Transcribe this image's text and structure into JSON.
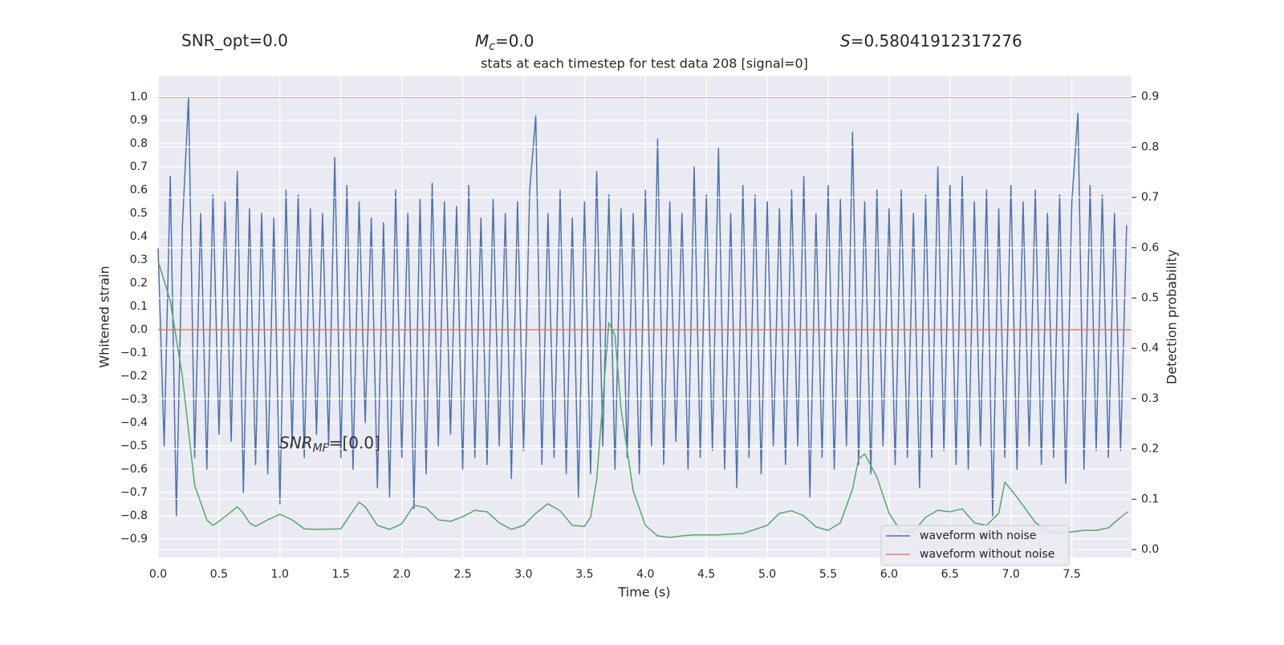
{
  "chart_data": {
    "type": "line",
    "title": "stats at each timestep for test data 208 [signal=0]",
    "xlabel": "Time (s)",
    "ylabel": "Whitened strain",
    "y2label": "Detection probability",
    "annotations": [
      {
        "text": "SNR_opt=0.0"
      },
      {
        "symbol": "M",
        "subscript": "c",
        "text": "=0.0"
      },
      {
        "symbol": "S",
        "text": "=0.58041912317276"
      },
      {
        "symbol": "SNR",
        "subscript": "MF",
        "text": "=[0.0]"
      }
    ],
    "xlim": [
      0,
      7.99
    ],
    "ylim": [
      -0.98,
      1.09
    ],
    "y2lim": [
      -0.016,
      0.941
    ],
    "xticks": [
      {
        "value": 0,
        "label": "0.0"
      },
      0.5,
      {
        "value": 1,
        "label": "1.0"
      },
      1.5,
      {
        "value": 2,
        "label": "2.0"
      },
      2.5,
      {
        "value": 3,
        "label": "3.0"
      },
      3.5,
      {
        "value": 4,
        "label": "4.0"
      },
      4.5,
      {
        "value": 5,
        "label": "5.0"
      },
      5.5,
      {
        "value": 6,
        "label": "6.0"
      },
      6.5,
      {
        "value": 7,
        "label": "7.0"
      },
      7.5
    ],
    "yticks": [
      {
        "value": -0.9,
        "label": "−0.9"
      },
      {
        "value": -0.8,
        "label": "−0.8"
      },
      {
        "value": -0.7,
        "label": "−0.7"
      },
      {
        "value": -0.6,
        "label": "−0.6"
      },
      {
        "value": -0.5,
        "label": "−0.5"
      },
      {
        "value": -0.4,
        "label": "−0.4"
      },
      {
        "value": -0.3,
        "label": "−0.3"
      },
      {
        "value": -0.2,
        "label": "−0.2"
      },
      {
        "value": -0.1,
        "label": "−0.1"
      },
      {
        "value": 0,
        "label": "0.0"
      },
      0.1,
      0.2,
      0.3,
      0.4,
      0.5,
      0.6,
      0.7,
      0.8,
      0.9,
      {
        "value": 1,
        "label": "1.0"
      }
    ],
    "y2ticks": [
      {
        "value": 0,
        "label": "0.0"
      },
      0.1,
      0.2,
      0.3,
      0.4,
      0.5,
      0.6,
      0.7,
      0.8,
      0.9
    ],
    "grid": true,
    "legend": "lower right",
    "hlines": [
      {
        "value": 1.0,
        "color": "#c44e52"
      }
    ],
    "series": [
      {
        "name": "waveform with noise",
        "color": "#4c72b0",
        "x": [
          0,
          0.05,
          0.1,
          0.15,
          0.2,
          0.25,
          0.3,
          0.35,
          0.4,
          0.45,
          0.5,
          0.55,
          0.6,
          0.65,
          0.7,
          0.75,
          0.8,
          0.85,
          0.9,
          0.95,
          1,
          1.05,
          1.1,
          1.15,
          1.2,
          1.25,
          1.3,
          1.35,
          1.4,
          1.45,
          1.5,
          1.55,
          1.6,
          1.65,
          1.7,
          1.75,
          1.8,
          1.85,
          1.9,
          1.95,
          2,
          2.05,
          2.1,
          2.15,
          2.2,
          2.25,
          2.3,
          2.35,
          2.4,
          2.45,
          2.5,
          2.55,
          2.6,
          2.65,
          2.7,
          2.75,
          2.8,
          2.85,
          2.9,
          2.95,
          3,
          3.05,
          3.1,
          3.15,
          3.2,
          3.25,
          3.3,
          3.35,
          3.4,
          3.45,
          3.5,
          3.55,
          3.6,
          3.65,
          3.7,
          3.75,
          3.8,
          3.85,
          3.9,
          3.95,
          4,
          4.05,
          4.1,
          4.15,
          4.2,
          4.25,
          4.3,
          4.35,
          4.4,
          4.45,
          4.5,
          4.55,
          4.6,
          4.65,
          4.7,
          4.75,
          4.8,
          4.85,
          4.9,
          4.95,
          5,
          5.05,
          5.1,
          5.15,
          5.2,
          5.25,
          5.3,
          5.35,
          5.4,
          5.45,
          5.5,
          5.55,
          5.6,
          5.65,
          5.7,
          5.75,
          5.8,
          5.85,
          5.9,
          5.95,
          6,
          6.05,
          6.1,
          6.15,
          6.2,
          6.25,
          6.3,
          6.35,
          6.4,
          6.45,
          6.5,
          6.55,
          6.6,
          6.65,
          6.7,
          6.75,
          6.8,
          6.85,
          6.9,
          6.95,
          7,
          7.05,
          7.1,
          7.15,
          7.2,
          7.25,
          7.3,
          7.35,
          7.4,
          7.45,
          7.5,
          7.55,
          7.6,
          7.65,
          7.7,
          7.75,
          7.8,
          7.85,
          7.9,
          7.95
        ],
        "values": [
          0.35,
          -0.5,
          0.66,
          -0.8,
          0.45,
          1.0,
          -0.55,
          0.5,
          -0.6,
          0.58,
          -0.45,
          0.55,
          -0.48,
          0.68,
          -0.7,
          0.52,
          -0.58,
          0.5,
          -0.62,
          0.48,
          -0.75,
          0.6,
          -0.5,
          0.58,
          -0.55,
          0.52,
          -0.45,
          0.5,
          -0.5,
          0.74,
          -0.55,
          0.62,
          -0.6,
          0.55,
          -0.4,
          0.48,
          -0.68,
          0.46,
          -0.72,
          0.6,
          -0.55,
          0.5,
          -0.77,
          0.56,
          -0.62,
          0.63,
          -0.5,
          0.55,
          -0.45,
          0.53,
          -0.6,
          0.62,
          -0.55,
          0.48,
          -0.58,
          0.56,
          -0.5,
          0.5,
          -0.64,
          0.55,
          -0.52,
          0.6,
          0.92,
          -0.58,
          0.5,
          -0.55,
          0.6,
          -0.62,
          0.48,
          -0.72,
          0.55,
          -0.62,
          0.68,
          -0.5,
          0.58,
          -0.6,
          0.52,
          -0.55,
          0.5,
          -0.62,
          0.6,
          -0.5,
          0.82,
          -0.58,
          0.55,
          -0.48,
          0.5,
          -0.6,
          0.7,
          -0.55,
          0.58,
          -0.52,
          0.78,
          -0.6,
          0.5,
          -0.68,
          0.62,
          -0.55,
          0.58,
          -0.62,
          0.55,
          -0.5,
          0.52,
          -0.58,
          0.6,
          -0.5,
          0.66,
          -0.72,
          0.5,
          -0.55,
          0.62,
          -0.6,
          0.56,
          -0.5,
          0.85,
          -0.58,
          0.55,
          -0.62,
          0.6,
          -0.5,
          0.52,
          -0.58,
          0.6,
          -0.55,
          0.5,
          -0.68,
          0.58,
          -0.55,
          0.7,
          -0.52,
          0.62,
          -0.58,
          0.66,
          -0.6,
          0.55,
          -0.5,
          0.6,
          -0.8,
          0.52,
          -0.55,
          0.62,
          -0.6,
          0.55,
          -0.5,
          0.6,
          -0.58,
          0.5,
          -0.55,
          0.58,
          -0.66,
          0.55,
          0.93,
          -0.6,
          0.62,
          -0.52,
          0.58,
          -0.55,
          0.5,
          -0.52,
          0.45
        ]
      },
      {
        "name": "waveform without noise",
        "color": "#dd8452",
        "x": [
          0,
          7.99
        ],
        "values": [
          0,
          0
        ]
      },
      {
        "color": "#55a868",
        "axis": "y2",
        "x": [
          0,
          0.1,
          0.2,
          0.3,
          0.4,
          0.45,
          0.5,
          0.6,
          0.65,
          0.7,
          0.75,
          0.8,
          0.9,
          1,
          1.1,
          1.2,
          1.3,
          1.5,
          1.6,
          1.65,
          1.7,
          1.8,
          1.9,
          2,
          2.1,
          2.2,
          2.3,
          2.4,
          2.5,
          2.6,
          2.7,
          2.8,
          2.9,
          3,
          3.1,
          3.2,
          3.3,
          3.4,
          3.5,
          3.55,
          3.6,
          3.65,
          3.7,
          3.75,
          3.8,
          3.9,
          4,
          4.1,
          4.2,
          4.3,
          4.4,
          4.6,
          4.8,
          5,
          5.1,
          5.2,
          5.3,
          5.4,
          5.5,
          5.6,
          5.7,
          5.75,
          5.8,
          5.9,
          6,
          6.1,
          6.2,
          6.3,
          6.4,
          6.5,
          6.6,
          6.7,
          6.8,
          6.9,
          6.95,
          7.05,
          7.2,
          7.3,
          7.4,
          7.5,
          7.6,
          7.7,
          7.8,
          7.9,
          7.96
        ],
        "values": [
          0.574,
          0.494,
          0.343,
          0.128,
          0.059,
          0.048,
          0.056,
          0.075,
          0.085,
          0.072,
          0.053,
          0.046,
          0.059,
          0.07,
          0.059,
          0.041,
          0.04,
          0.041,
          0.077,
          0.094,
          0.085,
          0.048,
          0.04,
          0.051,
          0.088,
          0.083,
          0.059,
          0.056,
          0.065,
          0.078,
          0.075,
          0.053,
          0.04,
          0.048,
          0.072,
          0.091,
          0.077,
          0.048,
          0.046,
          0.064,
          0.139,
          0.295,
          0.451,
          0.426,
          0.279,
          0.116,
          0.048,
          0.027,
          0.024,
          0.027,
          0.029,
          0.029,
          0.032,
          0.048,
          0.072,
          0.077,
          0.067,
          0.045,
          0.038,
          0.053,
          0.12,
          0.18,
          0.19,
          0.144,
          0.072,
          0.035,
          0.035,
          0.064,
          0.078,
          0.075,
          0.081,
          0.053,
          0.048,
          0.072,
          0.134,
          0.104,
          0.054,
          0.037,
          0.033,
          0.035,
          0.038,
          0.038,
          0.043,
          0.064,
          0.075
        ]
      }
    ]
  }
}
